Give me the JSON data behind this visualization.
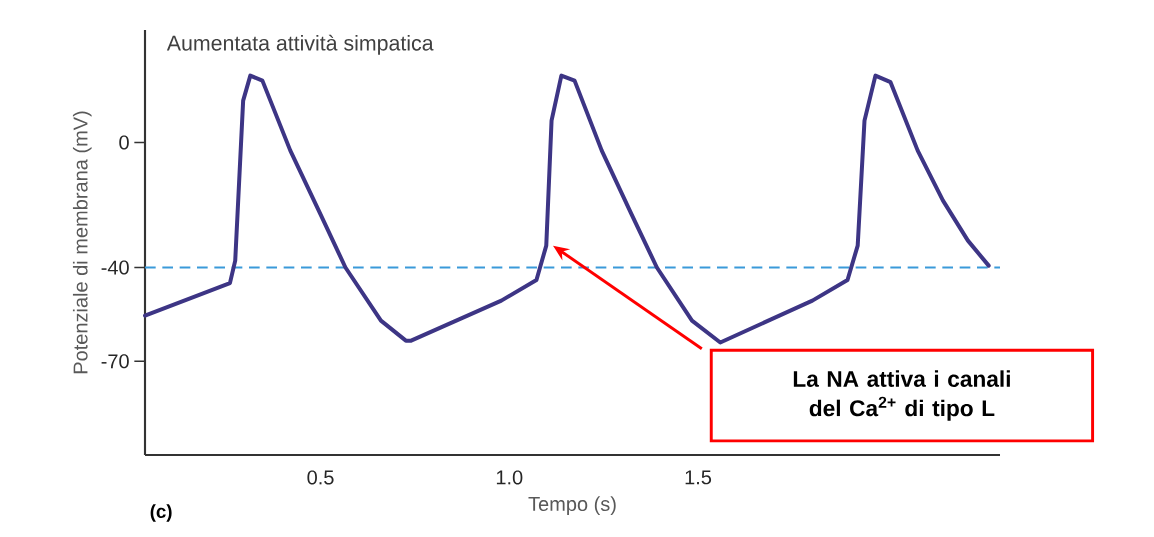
{
  "chart_data": {
    "type": "line",
    "title": "Aumentata attività simpatica",
    "xlabel": "Tempo (s)",
    "ylabel": "Potenziale di membrana (mV)",
    "x": [
      0.035,
      0.26,
      0.274,
      0.295,
      0.314,
      0.346,
      0.42,
      0.5,
      0.566,
      0.66,
      0.726,
      0.74,
      0.979,
      1.072,
      1.098,
      1.112,
      1.138,
      1.173,
      1.245,
      1.324,
      1.391,
      1.484,
      1.559,
      1.803,
      1.896,
      1.923,
      1.941,
      1.97,
      2.01,
      2.082,
      2.149,
      2.215,
      2.27
    ],
    "series": [
      {
        "color": "#3d3585",
        "values": [
          -55.4,
          -45,
          -37.8,
          13.4,
          21.4,
          19.8,
          -2.6,
          -23,
          -40,
          -57,
          -63.4,
          -63.4,
          -50.6,
          -44,
          -33,
          7,
          21.4,
          19.8,
          -2.6,
          -23,
          -40,
          -57,
          -64,
          -50.6,
          -44,
          -33,
          7,
          21.4,
          19.3,
          -2.6,
          -18.6,
          -31.4,
          -39.4
        ]
      }
    ],
    "xlim": [
      0.035,
      2.3
    ],
    "ylim": [
      -100,
      36
    ],
    "xticks": [
      0.5,
      {
        "value": 1,
        "label": "1.0"
      },
      1.5
    ],
    "yticks": [
      -70,
      -40,
      0
    ],
    "ref_lines": [
      {
        "axis": "y",
        "value": -40,
        "color": "#3a9ad9",
        "line_style": "dashed"
      }
    ],
    "annotations": [
      "La NA attiva i canali del Ca$^{2+}$ di tipo L",
      "(c)"
    ],
    "grid": false,
    "marker": "none",
    "line_style": "solid"
  }
}
